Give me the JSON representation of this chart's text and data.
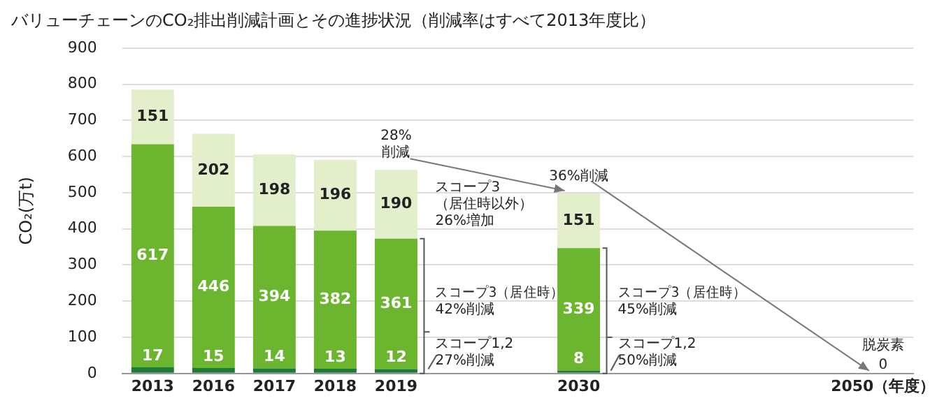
{
  "chart_data": {
    "type": "bar",
    "stacked": true,
    "title": "バリューチェーンのCO₂排出削減計画とその進捗状況（削減率はすべて2013年度比）",
    "ylabel": "CO₂(万t)",
    "categories": [
      "2013",
      "2016",
      "2017",
      "2018",
      "2019",
      null,
      null,
      "2030",
      null,
      null,
      null,
      null,
      "2050（年度）"
    ],
    "series": [
      {
        "color": "#1f7a3a",
        "values": [
          17,
          15,
          14,
          13,
          12,
          null,
          null,
          8,
          null,
          null,
          null,
          null,
          null
        ]
      },
      {
        "color": "#6cb52e",
        "values": [
          617,
          446,
          394,
          382,
          361,
          null,
          null,
          339,
          null,
          null,
          null,
          null,
          null
        ]
      },
      {
        "color": "#e3efcb",
        "values": [
          151,
          202,
          198,
          196,
          190,
          null,
          null,
          151,
          null,
          null,
          null,
          null,
          null
        ]
      }
    ],
    "ylim": [
      0,
      900
    ],
    "yticks": [
      0,
      100,
      200,
      300,
      400,
      500,
      600,
      700,
      800,
      900
    ],
    "grid": "y",
    "legend": false,
    "data_labels": true,
    "annotations": [
      {
        "text": "28%\n削減",
        "x": "2019",
        "y": 563
      },
      "スコープ3\n（居住時以外）\n26%増加",
      "スコープ3（居住時）\n42%削減",
      {
        "text": "スコープ1,2\n27%削減",
        "x": "2019",
        "y": 12
      },
      {
        "text": "36%削減",
        "x": "2030",
        "y": 498
      },
      "スコープ3（居住時）\n45%削減",
      {
        "text": "スコープ1,2\n50%削減",
        "x": "2030",
        "y": 8
      },
      "脱炭素",
      "0"
    ]
  }
}
